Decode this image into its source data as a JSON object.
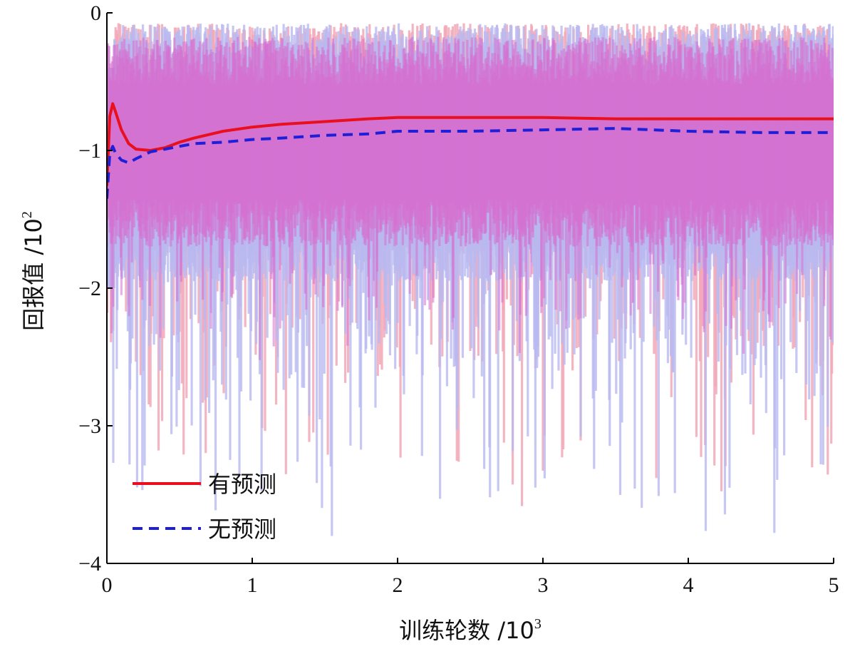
{
  "chart_data": {
    "type": "line",
    "x_label_text": "训练轮数 /10",
    "x_label_exp": "3",
    "y_label_text": "回报值 /10",
    "y_label_exp": "2",
    "xlim": [
      0,
      5
    ],
    "ylim": [
      -4,
      0
    ],
    "x_ticks": [
      "0",
      "1",
      "2",
      "3",
      "4",
      "5"
    ],
    "y_ticks": [
      "0",
      "−1",
      "−2",
      "−3",
      "−4"
    ],
    "grid": false,
    "legend_position": "bottom-left",
    "series": [
      {
        "name": "有预测",
        "color": "#e8101e",
        "style": "solid",
        "x": [
          0,
          0.02,
          0.04,
          0.06,
          0.1,
          0.15,
          0.2,
          0.3,
          0.4,
          0.5,
          0.6,
          0.8,
          1.0,
          1.2,
          1.5,
          1.8,
          2.0,
          2.5,
          3.0,
          3.5,
          4.0,
          4.5,
          5.0
        ],
        "y": [
          -1.25,
          -0.75,
          -0.66,
          -0.72,
          -0.85,
          -0.95,
          -0.99,
          -1.0,
          -0.98,
          -0.94,
          -0.91,
          -0.86,
          -0.83,
          -0.81,
          -0.79,
          -0.77,
          -0.76,
          -0.76,
          -0.76,
          -0.77,
          -0.77,
          -0.77,
          -0.77
        ]
      },
      {
        "name": "无预测",
        "color": "#1f1fd8",
        "style": "dashed",
        "x": [
          0,
          0.02,
          0.04,
          0.06,
          0.1,
          0.15,
          0.2,
          0.3,
          0.4,
          0.5,
          0.6,
          0.8,
          1.0,
          1.2,
          1.5,
          1.8,
          2.0,
          2.5,
          3.0,
          3.5,
          4.0,
          4.5,
          5.0
        ],
        "y": [
          -1.35,
          -1.02,
          -0.97,
          -1.02,
          -1.07,
          -1.09,
          -1.06,
          -1.01,
          -0.99,
          -0.97,
          -0.95,
          -0.94,
          -0.92,
          -0.91,
          -0.89,
          -0.88,
          -0.86,
          -0.86,
          -0.85,
          -0.84,
          -0.86,
          -0.87,
          -0.87
        ]
      }
    ],
    "bands": [
      {
        "series": "有预测",
        "color": "#f2a8b8",
        "typical_upper": -0.3,
        "typical_lower": -1.4
      },
      {
        "series": "无预测",
        "color": "#b9b9f0",
        "typical_upper": -0.3,
        "typical_lower": -1.6
      }
    ]
  }
}
